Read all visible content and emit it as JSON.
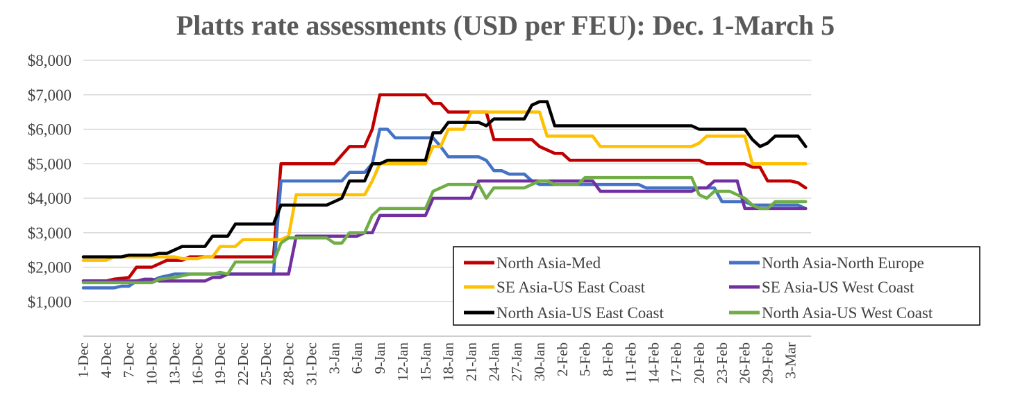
{
  "chart_data": {
    "type": "line",
    "title": "Platts rate assessments (USD per FEU): Dec. 1-March 5",
    "xlabel": "",
    "ylabel": "",
    "ylim": [
      0,
      8000
    ],
    "grid": true,
    "legend_position": "bottom-right",
    "y_ticks": [
      "$1,000",
      "$2,000",
      "$3,000",
      "$4,000",
      "$5,000",
      "$6,000",
      "$7,000",
      "$8,000"
    ],
    "x_tick_labels": [
      "1-Dec",
      "4-Dec",
      "7-Dec",
      "10-Dec",
      "13-Dec",
      "16-Dec",
      "19-Dec",
      "22-Dec",
      "25-Dec",
      "28-Dec",
      "31-Dec",
      "3-Jan",
      "6-Jan",
      "9-Jan",
      "12-Jan",
      "15-Jan",
      "18-Jan",
      "21-Jan",
      "24-Jan",
      "27-Jan",
      "30-Jan",
      "2-Feb",
      "5-Feb",
      "8-Feb",
      "11-Feb",
      "14-Feb",
      "17-Feb",
      "20-Feb",
      "23-Feb",
      "26-Feb",
      "29-Feb",
      "3-Mar"
    ],
    "series": [
      {
        "name": "North Asia-Med",
        "color": "#c00000",
        "points": [
          [
            "1-Dec",
            1600
          ],
          [
            "4-Dec",
            1600
          ],
          [
            "5-Dec",
            1650
          ],
          [
            "7-Dec",
            1700
          ],
          [
            "8-Dec",
            2000
          ],
          [
            "10-Dec",
            2000
          ],
          [
            "11-Dec",
            2100
          ],
          [
            "12-Dec",
            2200
          ],
          [
            "14-Dec",
            2200
          ],
          [
            "15-Dec",
            2300
          ],
          [
            "26-Dec",
            2300
          ],
          [
            "27-Dec",
            5000
          ],
          [
            "3-Jan",
            5000
          ],
          [
            "4-Jan",
            5250
          ],
          [
            "5-Jan",
            5500
          ],
          [
            "7-Jan",
            5500
          ],
          [
            "8-Jan",
            6000
          ],
          [
            "9-Jan",
            7000
          ],
          [
            "15-Jan",
            7000
          ],
          [
            "16-Jan",
            6750
          ],
          [
            "17-Jan",
            6750
          ],
          [
            "18-Jan",
            6500
          ],
          [
            "22-Jan",
            6500
          ],
          [
            "23-Jan",
            6500
          ],
          [
            "24-Jan",
            5700
          ],
          [
            "29-Jan",
            5700
          ],
          [
            "30-Jan",
            5500
          ],
          [
            "31-Jan",
            5400
          ],
          [
            "1-Feb",
            5300
          ],
          [
            "2-Feb",
            5300
          ],
          [
            "3-Feb",
            5100
          ],
          [
            "20-Feb",
            5100
          ],
          [
            "21-Feb",
            5000
          ],
          [
            "26-Feb",
            5000
          ],
          [
            "27-Feb",
            4900
          ],
          [
            "28-Feb",
            4900
          ],
          [
            "29-Feb",
            4500
          ],
          [
            "3-Mar",
            4500
          ],
          [
            "4-Mar",
            4450
          ],
          [
            "5-Mar",
            4300
          ]
        ]
      },
      {
        "name": "North Asia-North Europe",
        "color": "#4472c4",
        "points": [
          [
            "1-Dec",
            1400
          ],
          [
            "5-Dec",
            1400
          ],
          [
            "6-Dec",
            1450
          ],
          [
            "7-Dec",
            1450
          ],
          [
            "8-Dec",
            1600
          ],
          [
            "10-Dec",
            1600
          ],
          [
            "11-Dec",
            1700
          ],
          [
            "13-Dec",
            1800
          ],
          [
            "26-Dec",
            1800
          ],
          [
            "27-Dec",
            4500
          ],
          [
            "3-Jan",
            4500
          ],
          [
            "4-Jan",
            4500
          ],
          [
            "5-Jan",
            4750
          ],
          [
            "7-Jan",
            4750
          ],
          [
            "8-Jan",
            5000
          ],
          [
            "9-Jan",
            6000
          ],
          [
            "10-Jan",
            6000
          ],
          [
            "11-Jan",
            5750
          ],
          [
            "15-Jan",
            5750
          ],
          [
            "16-Jan",
            5750
          ],
          [
            "17-Jan",
            5500
          ],
          [
            "18-Jan",
            5200
          ],
          [
            "21-Jan",
            5200
          ],
          [
            "22-Jan",
            5200
          ],
          [
            "23-Jan",
            5100
          ],
          [
            "24-Jan",
            4800
          ],
          [
            "25-Jan",
            4800
          ],
          [
            "26-Jan",
            4700
          ],
          [
            "28-Jan",
            4700
          ],
          [
            "29-Jan",
            4500
          ],
          [
            "30-Jan",
            4400
          ],
          [
            "31-Jan",
            4400
          ],
          [
            "1-Feb",
            4400
          ],
          [
            "12-Feb",
            4400
          ],
          [
            "13-Feb",
            4300
          ],
          [
            "22-Feb",
            4300
          ],
          [
            "23-Feb",
            3900
          ],
          [
            "26-Feb",
            3900
          ],
          [
            "27-Feb",
            3800
          ],
          [
            "29-Feb",
            3800
          ],
          [
            "4-Mar",
            3800
          ],
          [
            "5-Mar",
            3700
          ]
        ]
      },
      {
        "name": "SE Asia-US East Coast",
        "color": "#ffc000",
        "points": [
          [
            "1-Dec",
            2200
          ],
          [
            "4-Dec",
            2200
          ],
          [
            "5-Dec",
            2300
          ],
          [
            "13-Dec",
            2300
          ],
          [
            "14-Dec",
            2250
          ],
          [
            "16-Dec",
            2250
          ],
          [
            "17-Dec",
            2300
          ],
          [
            "18-Dec",
            2300
          ],
          [
            "19-Dec",
            2600
          ],
          [
            "21-Dec",
            2600
          ],
          [
            "22-Dec",
            2800
          ],
          [
            "27-Dec",
            2800
          ],
          [
            "28-Dec",
            2900
          ],
          [
            "29-Dec",
            4100
          ],
          [
            "7-Jan",
            4100
          ],
          [
            "8-Jan",
            4500
          ],
          [
            "9-Jan",
            5000
          ],
          [
            "15-Jan",
            5000
          ],
          [
            "16-Jan",
            5500
          ],
          [
            "17-Jan",
            5500
          ],
          [
            "18-Jan",
            6000
          ],
          [
            "20-Jan",
            6000
          ],
          [
            "21-Jan",
            6500
          ],
          [
            "30-Jan",
            6500
          ],
          [
            "31-Jan",
            5800
          ],
          [
            "6-Feb",
            5800
          ],
          [
            "7-Feb",
            5500
          ],
          [
            "19-Feb",
            5500
          ],
          [
            "20-Feb",
            5600
          ],
          [
            "21-Feb",
            5800
          ],
          [
            "25-Feb",
            5800
          ],
          [
            "26-Feb",
            5800
          ],
          [
            "27-Feb",
            5000
          ],
          [
            "5-Mar",
            5000
          ]
        ]
      },
      {
        "name": "SE Asia-US West Coast",
        "color": "#7030a0",
        "points": [
          [
            "1-Dec",
            1600
          ],
          [
            "8-Dec",
            1600
          ],
          [
            "9-Dec",
            1650
          ],
          [
            "10-Dec",
            1650
          ],
          [
            "11-Dec",
            1600
          ],
          [
            "17-Dec",
            1600
          ],
          [
            "18-Dec",
            1700
          ],
          [
            "19-Dec",
            1700
          ],
          [
            "20-Dec",
            1800
          ],
          [
            "27-Dec",
            1800
          ],
          [
            "28-Dec",
            1800
          ],
          [
            "29-Dec",
            2900
          ],
          [
            "6-Jan",
            2900
          ],
          [
            "7-Jan",
            3000
          ],
          [
            "8-Jan",
            3000
          ],
          [
            "9-Jan",
            3500
          ],
          [
            "15-Jan",
            3500
          ],
          [
            "16-Jan",
            4000
          ],
          [
            "20-Jan",
            4000
          ],
          [
            "21-Jan",
            4000
          ],
          [
            "22-Jan",
            4500
          ],
          [
            "6-Feb",
            4500
          ],
          [
            "7-Feb",
            4200
          ],
          [
            "19-Feb",
            4200
          ],
          [
            "20-Feb",
            4300
          ],
          [
            "21-Feb",
            4300
          ],
          [
            "22-Feb",
            4500
          ],
          [
            "25-Feb",
            4500
          ],
          [
            "26-Feb",
            3700
          ],
          [
            "5-Mar",
            3700
          ]
        ]
      },
      {
        "name": "North Asia-US East Coast",
        "color": "#000000",
        "points": [
          [
            "1-Dec",
            2300
          ],
          [
            "6-Dec",
            2300
          ],
          [
            "7-Dec",
            2350
          ],
          [
            "10-Dec",
            2350
          ],
          [
            "11-Dec",
            2400
          ],
          [
            "12-Dec",
            2400
          ],
          [
            "14-Dec",
            2600
          ],
          [
            "16-Dec",
            2600
          ],
          [
            "17-Dec",
            2600
          ],
          [
            "18-Dec",
            2900
          ],
          [
            "20-Dec",
            2900
          ],
          [
            "21-Dec",
            3250
          ],
          [
            "24-Dec",
            3250
          ],
          [
            "25-Dec",
            3250
          ],
          [
            "26-Dec",
            3250
          ],
          [
            "27-Dec",
            3800
          ],
          [
            "2-Jan",
            3800
          ],
          [
            "3-Jan",
            3900
          ],
          [
            "4-Jan",
            4000
          ],
          [
            "5-Jan",
            4500
          ],
          [
            "7-Jan",
            4500
          ],
          [
            "8-Jan",
            5000
          ],
          [
            "9-Jan",
            5000
          ],
          [
            "10-Jan",
            5100
          ],
          [
            "15-Jan",
            5100
          ],
          [
            "16-Jan",
            5900
          ],
          [
            "17-Jan",
            5900
          ],
          [
            "18-Jan",
            6200
          ],
          [
            "21-Jan",
            6200
          ],
          [
            "22-Jan",
            6200
          ],
          [
            "23-Jan",
            6100
          ],
          [
            "24-Jan",
            6300
          ],
          [
            "27-Jan",
            6300
          ],
          [
            "28-Jan",
            6300
          ],
          [
            "29-Jan",
            6700
          ],
          [
            "30-Jan",
            6800
          ],
          [
            "31-Jan",
            6800
          ],
          [
            "1-Feb",
            6100
          ],
          [
            "19-Feb",
            6100
          ],
          [
            "20-Feb",
            6000
          ],
          [
            "25-Feb",
            6000
          ],
          [
            "26-Feb",
            6000
          ],
          [
            "27-Feb",
            5700
          ],
          [
            "28-Feb",
            5500
          ],
          [
            "29-Feb",
            5600
          ],
          [
            "1-Mar",
            5800
          ],
          [
            "4-Mar",
            5800
          ],
          [
            "5-Mar",
            5500
          ]
        ]
      },
      {
        "name": "North Asia-US West Coast",
        "color": "#70ad47",
        "points": [
          [
            "1-Dec",
            1550
          ],
          [
            "10-Dec",
            1550
          ],
          [
            "11-Dec",
            1650
          ],
          [
            "13-Dec",
            1700
          ],
          [
            "15-Dec",
            1800
          ],
          [
            "18-Dec",
            1800
          ],
          [
            "19-Dec",
            1850
          ],
          [
            "20-Dec",
            1800
          ],
          [
            "21-Dec",
            2150
          ],
          [
            "25-Dec",
            2150
          ],
          [
            "26-Dec",
            2150
          ],
          [
            "27-Dec",
            2700
          ],
          [
            "28-Dec",
            2850
          ],
          [
            "30-Dec",
            2850
          ],
          [
            "2-Jan",
            2850
          ],
          [
            "3-Jan",
            2700
          ],
          [
            "4-Jan",
            2700
          ],
          [
            "5-Jan",
            3000
          ],
          [
            "7-Jan",
            3000
          ],
          [
            "8-Jan",
            3500
          ],
          [
            "9-Jan",
            3700
          ],
          [
            "14-Jan",
            3700
          ],
          [
            "15-Jan",
            3700
          ],
          [
            "16-Jan",
            4200
          ],
          [
            "17-Jan",
            4300
          ],
          [
            "18-Jan",
            4400
          ],
          [
            "21-Jan",
            4400
          ],
          [
            "22-Jan",
            4400
          ],
          [
            "23-Jan",
            4000
          ],
          [
            "24-Jan",
            4300
          ],
          [
            "28-Jan",
            4300
          ],
          [
            "29-Jan",
            4400
          ],
          [
            "30-Jan",
            4500
          ],
          [
            "31-Jan",
            4500
          ],
          [
            "1-Feb",
            4400
          ],
          [
            "4-Feb",
            4400
          ],
          [
            "5-Feb",
            4600
          ],
          [
            "18-Feb",
            4600
          ],
          [
            "19-Feb",
            4600
          ],
          [
            "20-Feb",
            4100
          ],
          [
            "21-Feb",
            4000
          ],
          [
            "22-Feb",
            4200
          ],
          [
            "24-Feb",
            4200
          ],
          [
            "25-Feb",
            4100
          ],
          [
            "26-Feb",
            4000
          ],
          [
            "27-Feb",
            3800
          ],
          [
            "28-Feb",
            3700
          ],
          [
            "29-Feb",
            3700
          ],
          [
            "1-Mar",
            3900
          ],
          [
            "5-Mar",
            3900
          ]
        ]
      }
    ]
  }
}
